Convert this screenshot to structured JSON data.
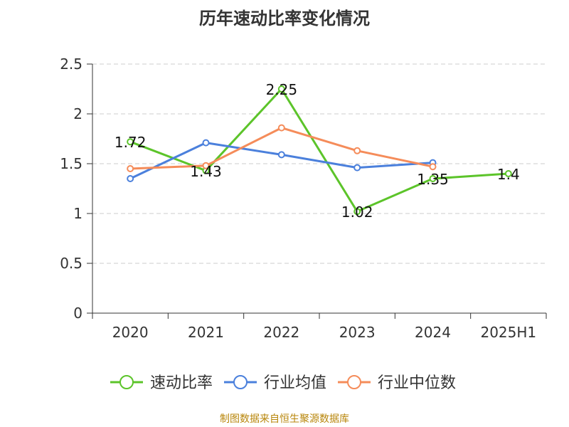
{
  "title": "历年速动比率变化情况",
  "source": "制图数据来自恒生聚源数据库",
  "colors": {
    "grid": "#cccccc",
    "axis": "#333333"
  },
  "chart_data": {
    "type": "line",
    "title": "历年速动比率变化情况",
    "categories": [
      "2020",
      "2021",
      "2022",
      "2023",
      "2024",
      "2025H1"
    ],
    "ylim": [
      0,
      2.5
    ],
    "yticks": [
      "0",
      "0.5",
      "1",
      "1.5",
      "2",
      "2.5"
    ],
    "grid": true,
    "legend_position": "bottom",
    "series": [
      {
        "name": "速动比率",
        "color": "#5cc42a",
        "values": [
          1.72,
          1.43,
          2.25,
          1.02,
          1.35,
          1.4
        ],
        "labels": [
          "1.72",
          "1.43",
          "2.25",
          "1.02",
          "1.35",
          "1.4"
        ]
      },
      {
        "name": "行业均值",
        "color": "#4b80dc",
        "values": [
          1.35,
          1.71,
          1.59,
          1.46,
          1.51,
          null
        ]
      },
      {
        "name": "行业中位数",
        "color": "#f58c5a",
        "values": [
          1.45,
          1.48,
          1.86,
          1.63,
          1.47,
          null
        ]
      }
    ]
  }
}
